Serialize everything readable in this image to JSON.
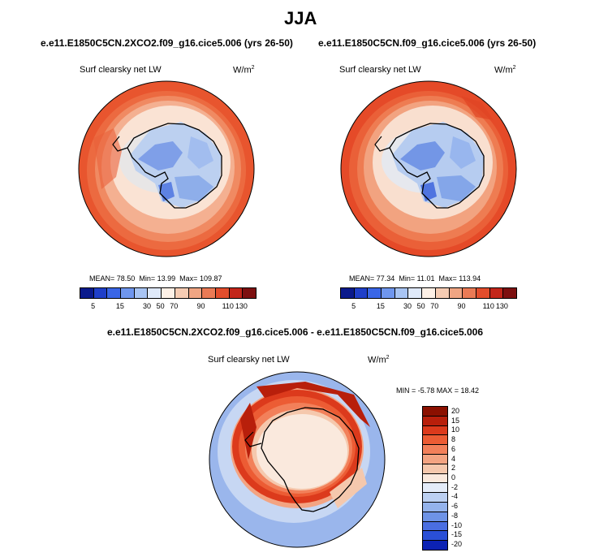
{
  "title": "JJA",
  "panels": [
    {
      "case": "e.e11.E1850C5CN.2XCO2.f09_g16.cice5.006 (yrs 26-50)",
      "variable": "Surf clearsky net LW",
      "units": "W/m",
      "units_sup": "2",
      "stats": {
        "mean_label": "MEAN=",
        "mean": "78.50",
        "min_label": "Min=",
        "min": "13.99",
        "max_label": "Max=",
        "max": "109.87"
      }
    },
    {
      "case": "e.e11.E1850C5CN.f09_g16.cice5.006 (yrs 26-50)",
      "variable": "Surf clearsky net LW",
      "units": "W/m",
      "units_sup": "2",
      "stats": {
        "mean_label": "MEAN=",
        "mean": "77.34",
        "min_label": "Min=",
        "min": "11.01",
        "max_label": "Max=",
        "max": "113.94"
      }
    }
  ],
  "abs_colorbar": {
    "colors": [
      "#0a1a8c",
      "#1f3fc9",
      "#3a66e6",
      "#6f96ee",
      "#a8c4f3",
      "#dfe9f9",
      "#fdf0e6",
      "#f6ccb3",
      "#f0a583",
      "#ea7a55",
      "#e24d2c",
      "#c3261a",
      "#7d1010"
    ],
    "ticks": [
      "5",
      "15",
      "30",
      "50",
      "70",
      "90",
      "110",
      "130"
    ]
  },
  "diff_panel": {
    "case": "e.e11.E1850C5CN.2XCO2.f09_g16.cice5.006 - e.e11.E1850C5CN.f09_g16.cice5.006",
    "variable": "Surf clearsky net LW",
    "units": "W/m",
    "units_sup": "2",
    "minmax": "MIN = -5.78 MAX = 18.42"
  },
  "diff_colorbar": {
    "colors": [
      "#8b1000",
      "#b81f0b",
      "#dc3a1c",
      "#ec5c34",
      "#f2805a",
      "#f3a482",
      "#f5c8ad",
      "#fae9dd",
      "#e4ecf9",
      "#bcd0f2",
      "#94b3ec",
      "#6e93e6",
      "#4a6ee1",
      "#2a4fd6",
      "#0c22b4"
    ],
    "ticks": [
      "20",
      "15",
      "10",
      "8",
      "6",
      "4",
      "2",
      "0",
      "-2",
      "-4",
      "-6",
      "-8",
      "-10",
      "-15",
      "-20"
    ]
  }
}
